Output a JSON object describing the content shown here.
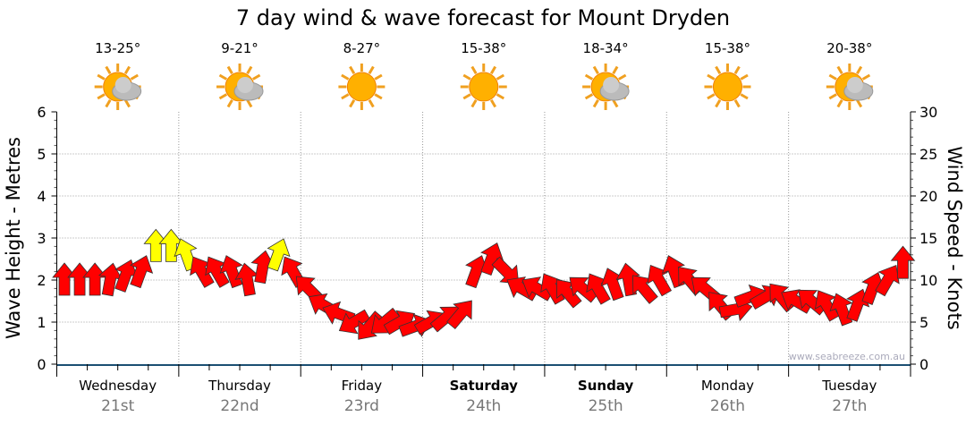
{
  "chart_data": {
    "type": "line",
    "title": "7 day wind & wave forecast for Mount Dryden",
    "ylabel": "Wave Height - Metres",
    "y2label": "Wind Speed - Knots",
    "ylim": [
      0,
      6
    ],
    "y2lim": [
      0,
      30
    ],
    "yticks": [
      "0",
      "1",
      "2",
      "3",
      "4",
      "5",
      "6"
    ],
    "y2ticks": [
      "0",
      "5",
      "10",
      "15",
      "20",
      "25",
      "30"
    ],
    "watermark": "www.seabreeze.com.au",
    "days": [
      {
        "name": "Wednesday",
        "date": "21st",
        "temp": "13-25°",
        "icon": "partly-cloudy",
        "bold": false
      },
      {
        "name": "Thursday",
        "date": "22nd",
        "temp": "9-21°",
        "icon": "partly-cloudy",
        "bold": false
      },
      {
        "name": "Friday",
        "date": "23rd",
        "temp": "8-27°",
        "icon": "sunny",
        "bold": false
      },
      {
        "name": "Saturday",
        "date": "24th",
        "temp": "15-38°",
        "icon": "sunny",
        "bold": true
      },
      {
        "name": "Sunday",
        "date": "25th",
        "temp": "18-34°",
        "icon": "partly-cloudy",
        "bold": true
      },
      {
        "name": "Monday",
        "date": "26th",
        "temp": "15-38°",
        "icon": "sunny",
        "bold": false
      },
      {
        "name": "Tuesday",
        "date": "27th",
        "temp": "20-38°",
        "icon": "partly-cloudy",
        "bold": false
      }
    ],
    "wind_speed_knots": [
      10,
      10,
      10,
      10,
      10.5,
      11,
      14,
      14,
      13,
      11,
      11,
      11,
      10,
      11.5,
      13,
      11,
      9,
      7,
      6,
      5,
      4.5,
      5,
      5,
      4.5,
      5,
      5.5,
      6,
      11,
      12.5,
      11,
      9,
      9,
      9,
      8.5,
      9,
      9,
      9.5,
      10,
      9,
      10,
      11,
      10,
      9,
      7,
      6.5,
      8,
      8,
      8,
      7.5,
      7.5,
      7,
      6.5,
      7,
      9,
      10,
      12
    ],
    "wind_dir_deg": [
      0,
      0,
      0,
      10,
      20,
      20,
      0,
      0,
      340,
      330,
      330,
      340,
      350,
      10,
      20,
      330,
      315,
      300,
      290,
      240,
      220,
      230,
      60,
      70,
      60,
      50,
      40,
      20,
      20,
      135,
      300,
      300,
      330,
      320,
      310,
      330,
      340,
      350,
      320,
      330,
      340,
      320,
      310,
      320,
      80,
      70,
      60,
      320,
      300,
      310,
      330,
      340,
      20,
      20,
      30,
      0
    ],
    "yellow_threshold_knots": 13,
    "colors": {
      "strong": "#ffff00",
      "normal": "#ff0000",
      "axis": "#1b4f72",
      "grid": "#999999"
    }
  }
}
